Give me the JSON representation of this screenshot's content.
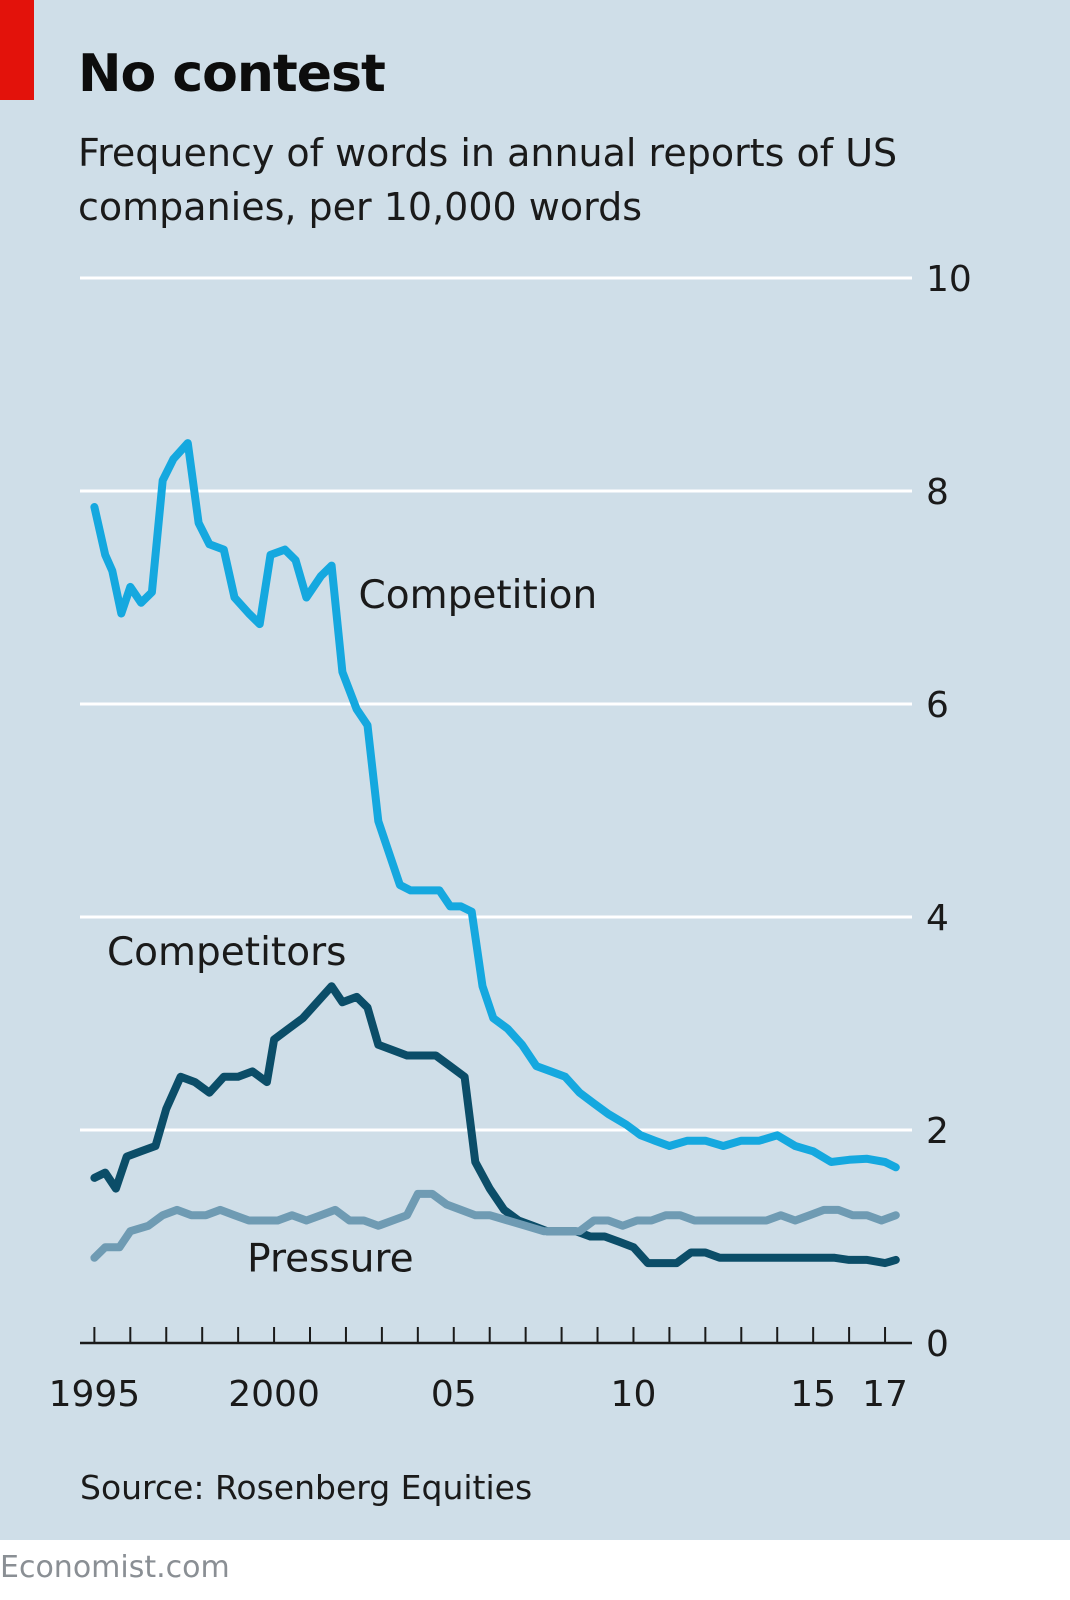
{
  "header": {
    "title": "No contest",
    "subtitle": "Frequency of words in annual reports of US companies, per 10,000 words"
  },
  "footer": {
    "source": "Source: Rosenberg Equities",
    "brand": "Economist.com"
  },
  "colors": {
    "background": "#cfdee8",
    "gridline": "#ffffff",
    "accent_red": "#e3120b",
    "competition": "#15a8df",
    "competitors": "#0b4d68",
    "pressure": "#6f9bb3"
  },
  "chart_data": {
    "type": "line",
    "title": "No contest",
    "subtitle": "Frequency of words in annual reports of US companies, per 10,000 words",
    "xlabel": "",
    "ylabel": "",
    "xlim": [
      1994.6,
      2017.75
    ],
    "ylim": [
      0,
      10
    ],
    "yticks": [
      0,
      2,
      4,
      6,
      8,
      10
    ],
    "xtick_labels": [
      {
        "x": 1995,
        "label": "1995"
      },
      {
        "x": 2000,
        "label": "2000"
      },
      {
        "x": 2005,
        "label": "05"
      },
      {
        "x": 2010,
        "label": "10"
      },
      {
        "x": 2015,
        "label": "15"
      },
      {
        "x": 2017,
        "label": "17"
      }
    ],
    "grid": true,
    "series": [
      {
        "name": "Competition",
        "color": "#15a8df",
        "points": [
          [
            1995.0,
            7.85
          ],
          [
            1995.3,
            7.4
          ],
          [
            1995.5,
            7.25
          ],
          [
            1995.75,
            6.85
          ],
          [
            1996.0,
            7.1
          ],
          [
            1996.3,
            6.95
          ],
          [
            1996.6,
            7.05
          ],
          [
            1996.9,
            8.1
          ],
          [
            1997.2,
            8.3
          ],
          [
            1997.6,
            8.45
          ],
          [
            1997.9,
            7.7
          ],
          [
            1998.2,
            7.5
          ],
          [
            1998.6,
            7.45
          ],
          [
            1998.9,
            7.0
          ],
          [
            1999.3,
            6.85
          ],
          [
            1999.6,
            6.75
          ],
          [
            1999.9,
            7.4
          ],
          [
            2000.3,
            7.45
          ],
          [
            2000.6,
            7.35
          ],
          [
            2000.9,
            7.0
          ],
          [
            2001.3,
            7.2
          ],
          [
            2001.6,
            7.3
          ],
          [
            2001.9,
            6.3
          ],
          [
            2002.3,
            5.95
          ],
          [
            2002.6,
            5.8
          ],
          [
            2002.9,
            4.9
          ],
          [
            2003.2,
            4.6
          ],
          [
            2003.5,
            4.3
          ],
          [
            2003.8,
            4.25
          ],
          [
            2004.2,
            4.25
          ],
          [
            2004.6,
            4.25
          ],
          [
            2004.9,
            4.1
          ],
          [
            2005.2,
            4.1
          ],
          [
            2005.5,
            4.05
          ],
          [
            2005.8,
            3.35
          ],
          [
            2006.1,
            3.05
          ],
          [
            2006.5,
            2.95
          ],
          [
            2006.9,
            2.8
          ],
          [
            2007.3,
            2.6
          ],
          [
            2007.7,
            2.55
          ],
          [
            2008.1,
            2.5
          ],
          [
            2008.5,
            2.35
          ],
          [
            2008.9,
            2.25
          ],
          [
            2009.3,
            2.15
          ],
          [
            2009.8,
            2.05
          ],
          [
            2010.2,
            1.95
          ],
          [
            2010.6,
            1.9
          ],
          [
            2011.0,
            1.85
          ],
          [
            2011.5,
            1.9
          ],
          [
            2012.0,
            1.9
          ],
          [
            2012.5,
            1.85
          ],
          [
            2013.0,
            1.9
          ],
          [
            2013.5,
            1.9
          ],
          [
            2014.0,
            1.95
          ],
          [
            2014.5,
            1.85
          ],
          [
            2015.0,
            1.8
          ],
          [
            2015.5,
            1.7
          ],
          [
            2016.0,
            1.72
          ],
          [
            2016.5,
            1.73
          ],
          [
            2017.0,
            1.7
          ],
          [
            2017.3,
            1.65
          ]
        ]
      },
      {
        "name": "Competitors",
        "color": "#0b4d68",
        "points": [
          [
            1995.0,
            1.55
          ],
          [
            1995.3,
            1.6
          ],
          [
            1995.6,
            1.45
          ],
          [
            1995.9,
            1.75
          ],
          [
            1996.3,
            1.8
          ],
          [
            1996.7,
            1.85
          ],
          [
            1997.0,
            2.2
          ],
          [
            1997.4,
            2.5
          ],
          [
            1997.8,
            2.45
          ],
          [
            1998.2,
            2.35
          ],
          [
            1998.6,
            2.5
          ],
          [
            1999.0,
            2.5
          ],
          [
            1999.4,
            2.55
          ],
          [
            1999.8,
            2.45
          ],
          [
            2000.0,
            2.85
          ],
          [
            2000.4,
            2.95
          ],
          [
            2000.8,
            3.05
          ],
          [
            2001.2,
            3.2
          ],
          [
            2001.6,
            3.35
          ],
          [
            2001.9,
            3.2
          ],
          [
            2002.3,
            3.25
          ],
          [
            2002.6,
            3.15
          ],
          [
            2002.9,
            2.8
          ],
          [
            2003.3,
            2.75
          ],
          [
            2003.7,
            2.7
          ],
          [
            2004.1,
            2.7
          ],
          [
            2004.5,
            2.7
          ],
          [
            2004.9,
            2.6
          ],
          [
            2005.3,
            2.5
          ],
          [
            2005.6,
            1.7
          ],
          [
            2006.0,
            1.45
          ],
          [
            2006.4,
            1.25
          ],
          [
            2006.8,
            1.15
          ],
          [
            2007.2,
            1.1
          ],
          [
            2007.6,
            1.05
          ],
          [
            2008.0,
            1.05
          ],
          [
            2008.4,
            1.05
          ],
          [
            2008.8,
            1.0
          ],
          [
            2009.2,
            1.0
          ],
          [
            2009.6,
            0.95
          ],
          [
            2010.0,
            0.9
          ],
          [
            2010.4,
            0.75
          ],
          [
            2010.8,
            0.75
          ],
          [
            2011.2,
            0.75
          ],
          [
            2011.6,
            0.85
          ],
          [
            2012.0,
            0.85
          ],
          [
            2012.4,
            0.8
          ],
          [
            2012.8,
            0.8
          ],
          [
            2013.2,
            0.8
          ],
          [
            2013.6,
            0.8
          ],
          [
            2014.0,
            0.8
          ],
          [
            2014.4,
            0.8
          ],
          [
            2014.8,
            0.8
          ],
          [
            2015.2,
            0.8
          ],
          [
            2015.6,
            0.8
          ],
          [
            2016.0,
            0.78
          ],
          [
            2016.5,
            0.78
          ],
          [
            2017.0,
            0.75
          ],
          [
            2017.3,
            0.78
          ]
        ]
      },
      {
        "name": "Pressure",
        "color": "#6f9bb3",
        "points": [
          [
            1995.0,
            0.8
          ],
          [
            1995.3,
            0.9
          ],
          [
            1995.7,
            0.9
          ],
          [
            1996.0,
            1.05
          ],
          [
            1996.5,
            1.1
          ],
          [
            1996.9,
            1.2
          ],
          [
            1997.3,
            1.25
          ],
          [
            1997.7,
            1.2
          ],
          [
            1998.1,
            1.2
          ],
          [
            1998.5,
            1.25
          ],
          [
            1998.9,
            1.2
          ],
          [
            1999.3,
            1.15
          ],
          [
            1999.7,
            1.15
          ],
          [
            2000.1,
            1.15
          ],
          [
            2000.5,
            1.2
          ],
          [
            2000.9,
            1.15
          ],
          [
            2001.3,
            1.2
          ],
          [
            2001.7,
            1.25
          ],
          [
            2002.1,
            1.15
          ],
          [
            2002.5,
            1.15
          ],
          [
            2002.9,
            1.1
          ],
          [
            2003.3,
            1.15
          ],
          [
            2003.7,
            1.2
          ],
          [
            2004.0,
            1.4
          ],
          [
            2004.4,
            1.4
          ],
          [
            2004.8,
            1.3
          ],
          [
            2005.2,
            1.25
          ],
          [
            2005.6,
            1.2
          ],
          [
            2006.0,
            1.2
          ],
          [
            2006.5,
            1.15
          ],
          [
            2007.0,
            1.1
          ],
          [
            2007.5,
            1.05
          ],
          [
            2008.0,
            1.05
          ],
          [
            2008.5,
            1.05
          ],
          [
            2008.9,
            1.15
          ],
          [
            2009.3,
            1.15
          ],
          [
            2009.7,
            1.1
          ],
          [
            2010.1,
            1.15
          ],
          [
            2010.5,
            1.15
          ],
          [
            2010.9,
            1.2
          ],
          [
            2011.3,
            1.2
          ],
          [
            2011.7,
            1.15
          ],
          [
            2012.1,
            1.15
          ],
          [
            2012.5,
            1.15
          ],
          [
            2012.9,
            1.15
          ],
          [
            2013.3,
            1.15
          ],
          [
            2013.7,
            1.15
          ],
          [
            2014.1,
            1.2
          ],
          [
            2014.5,
            1.15
          ],
          [
            2014.9,
            1.2
          ],
          [
            2015.3,
            1.25
          ],
          [
            2015.7,
            1.25
          ],
          [
            2016.1,
            1.2
          ],
          [
            2016.5,
            1.2
          ],
          [
            2016.9,
            1.15
          ],
          [
            2017.3,
            1.2
          ]
        ]
      }
    ],
    "annotations": [
      {
        "text": "Competition",
        "series": "Competition",
        "x": 2002.35,
        "y": 6.9
      },
      {
        "text": "Competitors",
        "series": "Competitors",
        "x": 1995.35,
        "y": 3.55
      },
      {
        "text": "Pressure",
        "series": "Pressure",
        "x": 1999.25,
        "y": 0.67
      }
    ]
  }
}
